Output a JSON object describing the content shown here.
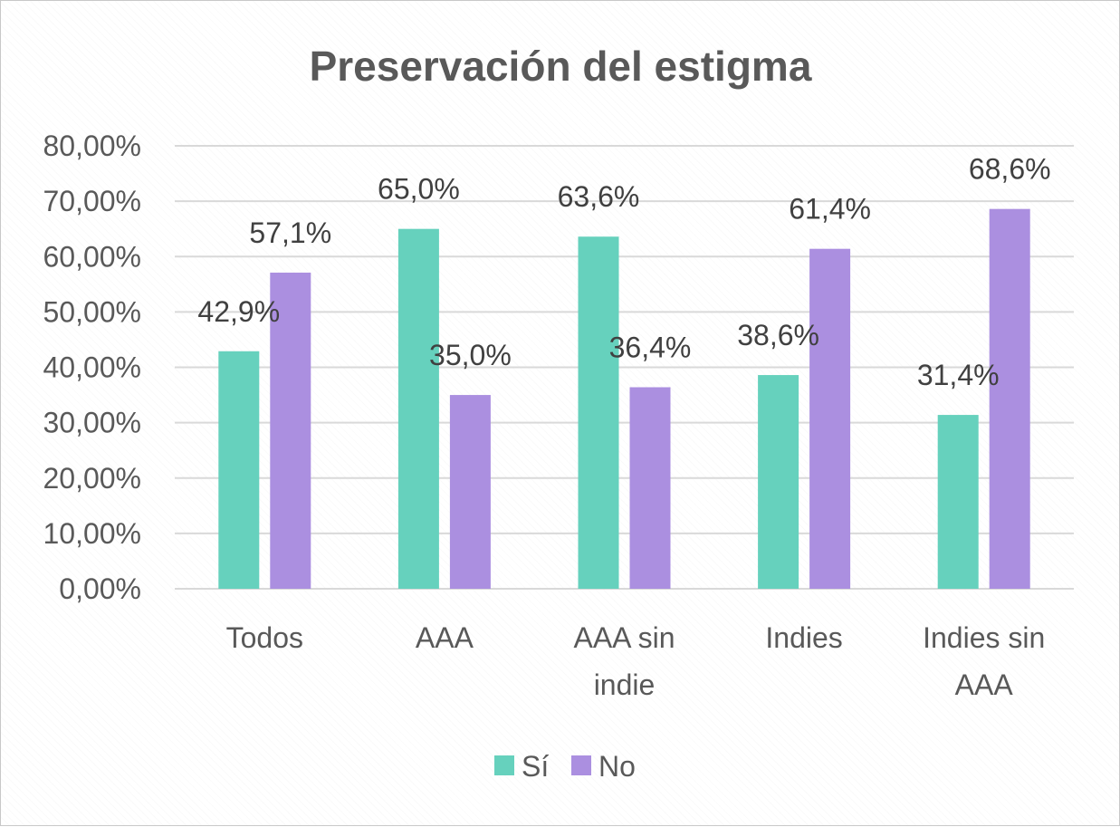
{
  "chart_data": {
    "type": "bar",
    "title": "Preservación del estigma",
    "categories": [
      "Todos",
      "AAA",
      "AAA sin indie",
      "Indies",
      "Indies sin AAA"
    ],
    "category_lines": [
      [
        "Todos"
      ],
      [
        "AAA"
      ],
      [
        "AAA sin",
        "indie"
      ],
      [
        "Indies"
      ],
      [
        "Indies sin",
        "AAA"
      ]
    ],
    "series": [
      {
        "name": "Sí",
        "color": "#66d1bd",
        "values": [
          42.9,
          65.0,
          63.6,
          38.6,
          31.4
        ],
        "labels": [
          "42,9%",
          "65,0%",
          "63,6%",
          "38,6%",
          "31,4%"
        ]
      },
      {
        "name": "No",
        "color": "#ab8fe0",
        "values": [
          57.1,
          35.0,
          36.4,
          61.4,
          68.6
        ],
        "labels": [
          "57,1%",
          "35,0%",
          "36,4%",
          "61,4%",
          "68,6%"
        ]
      }
    ],
    "ylim": [
      0,
      80
    ],
    "yticks": [
      0,
      10,
      20,
      30,
      40,
      50,
      60,
      70,
      80
    ],
    "ytick_labels": [
      "0,00%",
      "10,00%",
      "20,00%",
      "30,00%",
      "40,00%",
      "50,00%",
      "60,00%",
      "70,00%",
      "80,00%"
    ],
    "xlabel": "",
    "ylabel": "",
    "grid": true,
    "legend_position": "bottom"
  }
}
